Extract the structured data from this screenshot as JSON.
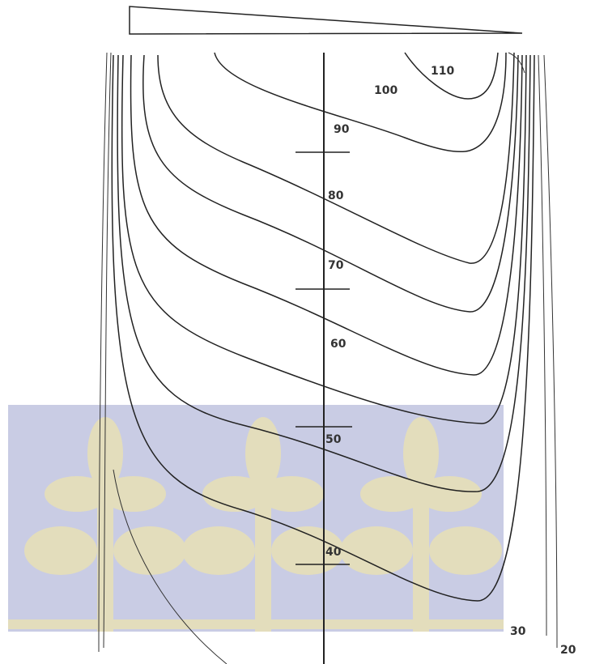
{
  "diagram": {
    "contour_labels": [
      110,
      100,
      90,
      80,
      70,
      60,
      50,
      40,
      30,
      20
    ]
  }
}
